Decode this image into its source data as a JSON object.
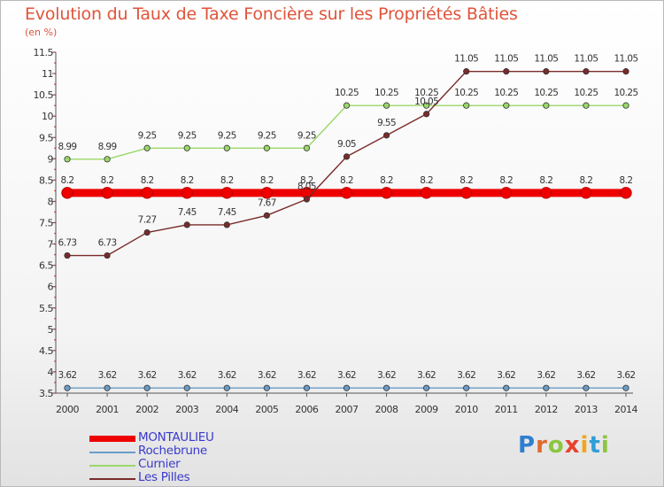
{
  "chart_data": {
    "type": "line",
    "title": "Evolution du Taux de Taxe Foncière sur les Propriétés Bâties",
    "subtitle": "(en %)",
    "xlabel": "",
    "ylabel": "",
    "grid": false,
    "legend_position": "bottom-left",
    "x": [
      2000,
      2001,
      2002,
      2003,
      2004,
      2005,
      2006,
      2007,
      2008,
      2009,
      2010,
      2011,
      2012,
      2013,
      2014
    ],
    "ylim": [
      3.5,
      11.5
    ],
    "yticks": [
      "3.5",
      "4",
      "4.5",
      "5",
      "5.5",
      "6",
      "6.5",
      "7",
      "7.5",
      "8",
      "8.5",
      "9",
      "9.5",
      "10",
      "10.5",
      "11",
      "11.5"
    ],
    "series": [
      {
        "name": "MONTAULIEU",
        "color": "#ee0000",
        "values": [
          8.2,
          8.2,
          8.2,
          8.2,
          8.2,
          8.2,
          8.2,
          8.2,
          8.2,
          8.2,
          8.2,
          8.2,
          8.2,
          8.2,
          8.2
        ],
        "labels": [
          "8.2",
          "8.2",
          "8.2",
          "8.2",
          "8.2",
          "8.2",
          "8.2",
          "8.2",
          "8.2",
          "8.2",
          "8.2",
          "8.2",
          "8.2",
          "8.2",
          "8.2"
        ]
      },
      {
        "name": "Rochebrune",
        "color": "#6a9cc7",
        "values": [
          3.62,
          3.62,
          3.62,
          3.62,
          3.62,
          3.62,
          3.62,
          3.62,
          3.62,
          3.62,
          3.62,
          3.62,
          3.62,
          3.62,
          3.62
        ],
        "labels": [
          "3.62",
          "3.62",
          "3.62",
          "3.62",
          "3.62",
          "3.62",
          "3.62",
          "3.62",
          "3.62",
          "3.62",
          "3.62",
          "3.62",
          "3.62",
          "3.62",
          "3.62"
        ]
      },
      {
        "name": "Curnier",
        "color": "#9ad86a",
        "values": [
          8.99,
          8.99,
          9.25,
          9.25,
          9.25,
          9.25,
          9.25,
          10.25,
          10.25,
          10.25,
          10.25,
          10.25,
          10.25,
          10.25,
          10.25
        ],
        "labels": [
          "8.99",
          "8.99",
          "9.25",
          "9.25",
          "9.25",
          "9.25",
          "9.25",
          "10.25",
          "10.25",
          "10.25",
          "10.25",
          "10.25",
          "10.25",
          "10.25",
          "10.25"
        ]
      },
      {
        "name": "Les Pilles",
        "color": "#7a2b2b",
        "values": [
          6.73,
          6.73,
          7.27,
          7.45,
          7.45,
          7.67,
          8.05,
          9.05,
          9.55,
          10.05,
          11.05,
          11.05,
          11.05,
          11.05,
          11.05
        ],
        "labels": [
          "6.73",
          "6.73",
          "7.27",
          "7.45",
          "7.45",
          "7.67",
          "8.05",
          "9.05",
          "9.55",
          "10.05",
          "11.05",
          "11.05",
          "11.05",
          "11.05",
          "11.05"
        ]
      }
    ]
  },
  "logo": {
    "text": "Proxiti",
    "letter_colors": [
      "#2f7fd1",
      "#e06b2d",
      "#8cc63f",
      "#e8412c",
      "#f2a51c",
      "#2f9fd8",
      "#8cc63f"
    ]
  }
}
